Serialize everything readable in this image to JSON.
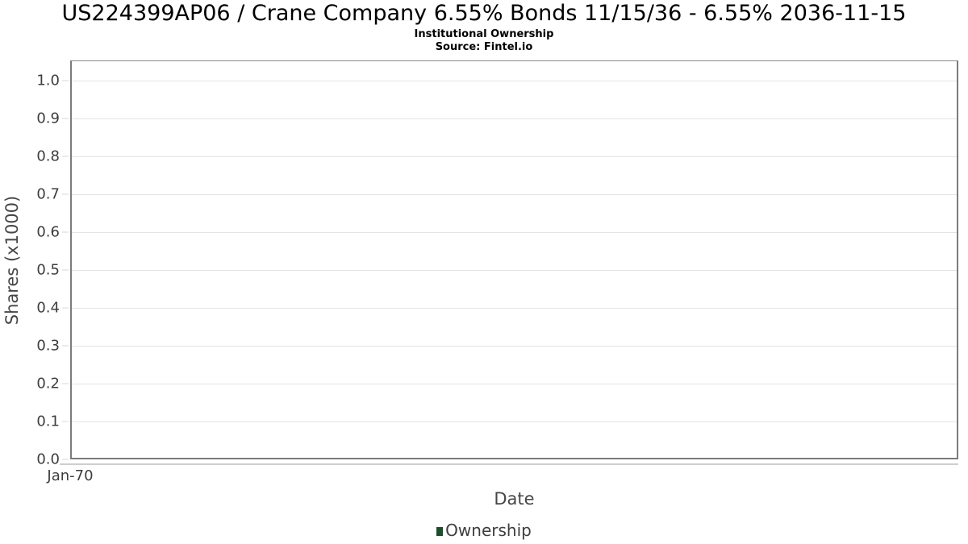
{
  "header": {
    "title": "US224399AP06 / Crane Company 6.55% Bonds 11/15/36 - 6.55% 2036-11-15",
    "subtitle": "Institutional Ownership",
    "source": "Source: Fintel.io"
  },
  "chart_data": {
    "type": "line",
    "title": "US224399AP06 / Crane Company 6.55% Bonds 11/15/36 - 6.55% 2036-11-15",
    "subtitle": "Institutional Ownership",
    "source": "Source: Fintel.io",
    "xlabel": "Date",
    "ylabel": "Shares (x1000)",
    "x_ticks": [
      "Jan-70"
    ],
    "y_ticks": [
      "0.0",
      "0.1",
      "0.2",
      "0.3",
      "0.4",
      "0.5",
      "0.6",
      "0.7",
      "0.8",
      "0.9",
      "1.0"
    ],
    "ylim": [
      0,
      1.053
    ],
    "grid": true,
    "legend": {
      "position": "bottom",
      "entries": [
        {
          "label": "Ownership",
          "color": "#1e4d2c"
        }
      ]
    },
    "series": [
      {
        "name": "Ownership",
        "x": [],
        "values": []
      }
    ]
  },
  "colors": {
    "axis_border": "#7b7b7b",
    "gridline": "#e4e4e4",
    "tick_text": "#3d3d3d",
    "axis_label_text": "#464646",
    "legend_marker": "#1e4d2c"
  }
}
